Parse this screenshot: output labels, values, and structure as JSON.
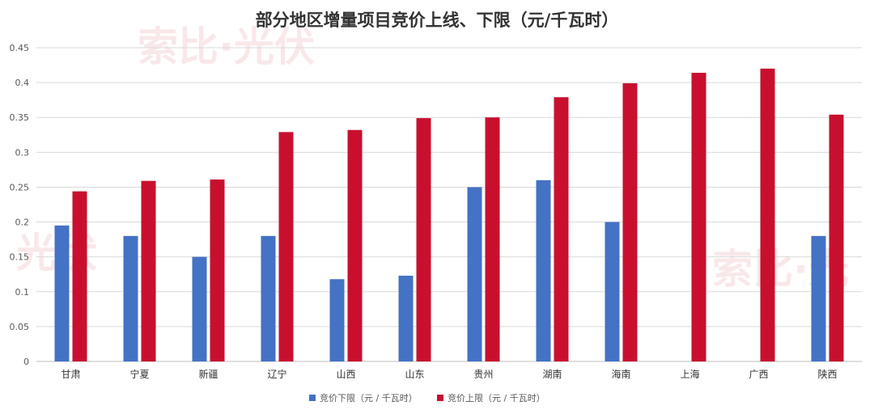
{
  "chart_data": {
    "type": "bar",
    "title": "部分地区增量项目竞价上线、下限（元/千瓦时）",
    "xlabel": "",
    "ylabel": "",
    "ylim": [
      0,
      0.45
    ],
    "yticks": [
      "0",
      "0.05",
      "0.1",
      "0.15",
      "0.2",
      "0.25",
      "0.3",
      "0.35",
      "0.4",
      "0.45"
    ],
    "grid": true,
    "legend_position": "bottom",
    "categories": [
      "甘肃",
      "宁夏",
      "新疆",
      "辽宁",
      "山西",
      "山东",
      "贵州",
      "湖南",
      "海南",
      "上海",
      "广西",
      "陕西"
    ],
    "series": [
      {
        "name": "竞价下限（元 / 千瓦时）",
        "color": "#4472c4",
        "values": [
          0.195,
          0.18,
          0.15,
          0.18,
          0.118,
          0.123,
          0.25,
          0.26,
          0.2,
          null,
          null,
          0.18
        ]
      },
      {
        "name": "竞价上限（元 / 千瓦时）",
        "color": "#c8102e",
        "values": [
          0.244,
          0.259,
          0.261,
          0.329,
          0.332,
          0.349,
          0.35,
          0.379,
          0.399,
          0.414,
          0.42,
          0.354
        ]
      }
    ]
  }
}
